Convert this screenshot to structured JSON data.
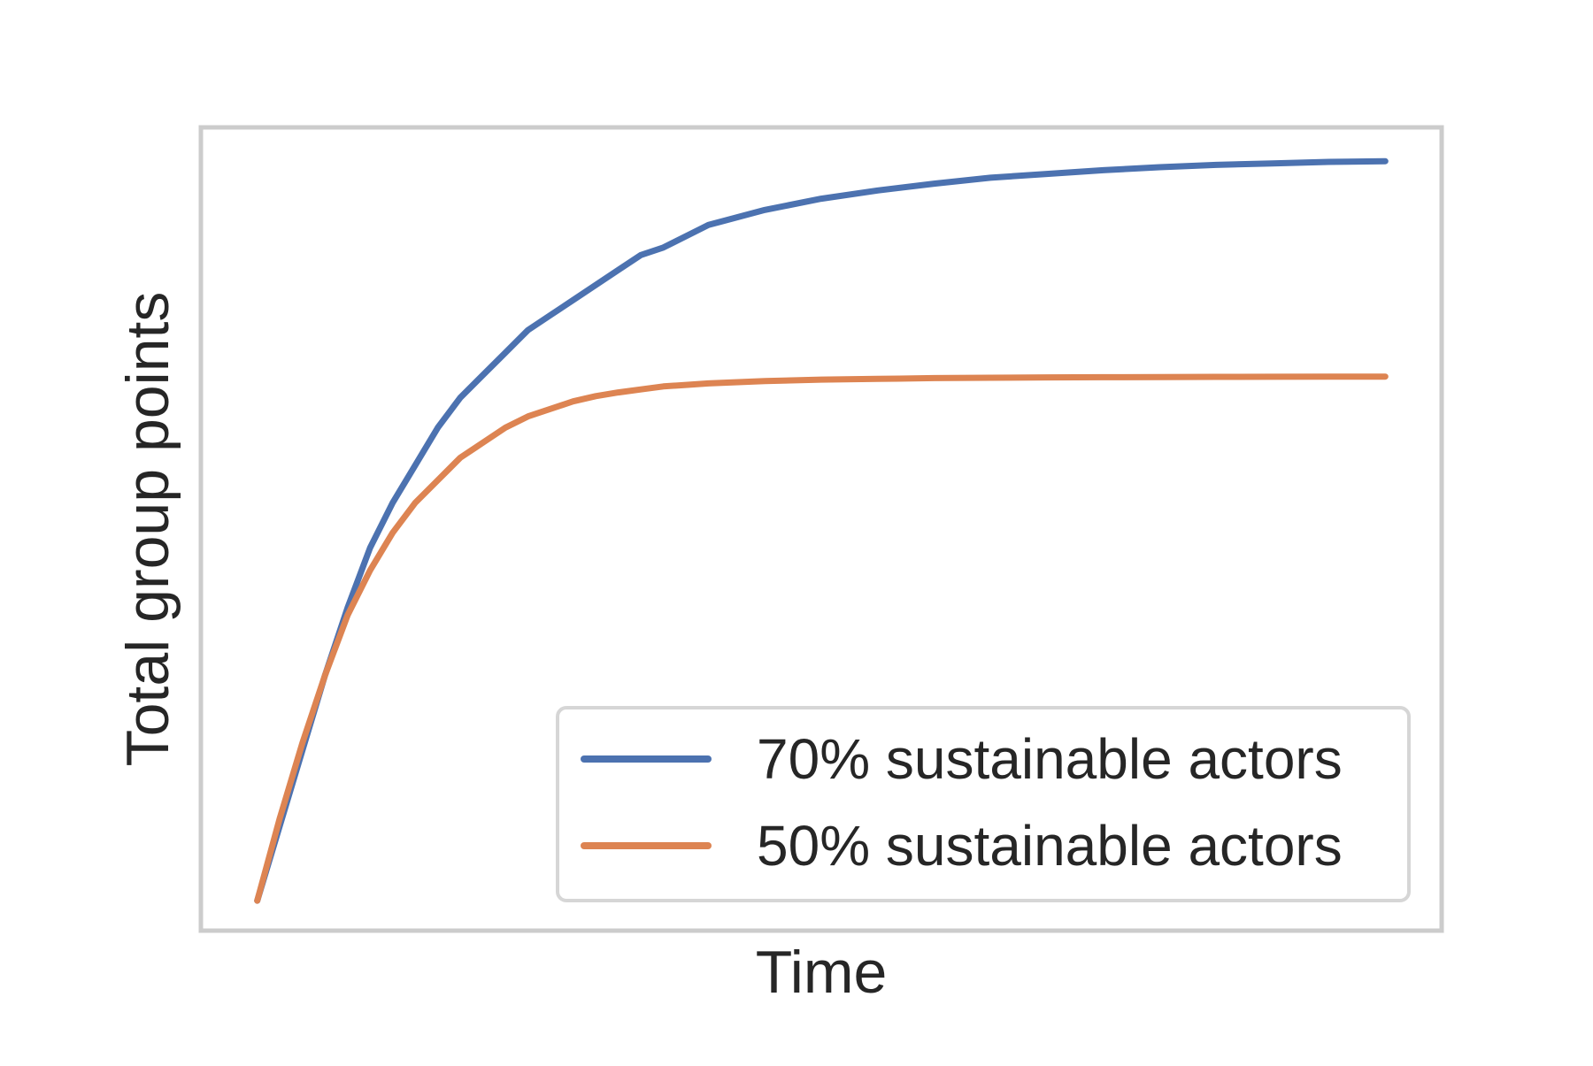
{
  "chart_data": {
    "type": "line",
    "title": "",
    "xlabel": "Time",
    "ylabel": "Total group points",
    "x_ticks_shown": false,
    "y_ticks_shown": false,
    "grid": false,
    "legend_position": "lower-right",
    "x": [
      0,
      0.02,
      0.04,
      0.06,
      0.08,
      0.1,
      0.12,
      0.14,
      0.16,
      0.18,
      0.2,
      0.22,
      0.24,
      0.26,
      0.28,
      0.3,
      0.32,
      0.34,
      0.36,
      0.38,
      0.4,
      0.45,
      0.5,
      0.55,
      0.6,
      0.65,
      0.7,
      0.75,
      0.8,
      0.85,
      0.9,
      0.95,
      1.0
    ],
    "series": [
      {
        "name": "70% sustainable actors",
        "color": "#4c72b0",
        "values": [
          0.0,
          0.1,
          0.2,
          0.3,
          0.39,
          0.47,
          0.53,
          0.58,
          0.63,
          0.67,
          0.7,
          0.73,
          0.76,
          0.78,
          0.8,
          0.82,
          0.84,
          0.86,
          0.87,
          0.885,
          0.9,
          0.92,
          0.935,
          0.946,
          0.955,
          0.963,
          0.968,
          0.973,
          0.977,
          0.98,
          0.982,
          0.984,
          0.985
        ]
      },
      {
        "name": "50% sustainable actors",
        "color": "#dd8452",
        "values": [
          0.0,
          0.11,
          0.21,
          0.3,
          0.38,
          0.44,
          0.49,
          0.53,
          0.56,
          0.59,
          0.61,
          0.63,
          0.645,
          0.655,
          0.665,
          0.672,
          0.677,
          0.681,
          0.685,
          0.687,
          0.689,
          0.692,
          0.694,
          0.695,
          0.696,
          0.6965,
          0.697,
          0.6972,
          0.6975,
          0.6977,
          0.6978,
          0.698,
          0.698
        ]
      }
    ],
    "xlim": [
      -0.05,
      1.05
    ],
    "ylim": [
      -0.04,
      1.03
    ],
    "frame_color": "#cccccc",
    "legend_frame_color": "#d6d6d6"
  }
}
